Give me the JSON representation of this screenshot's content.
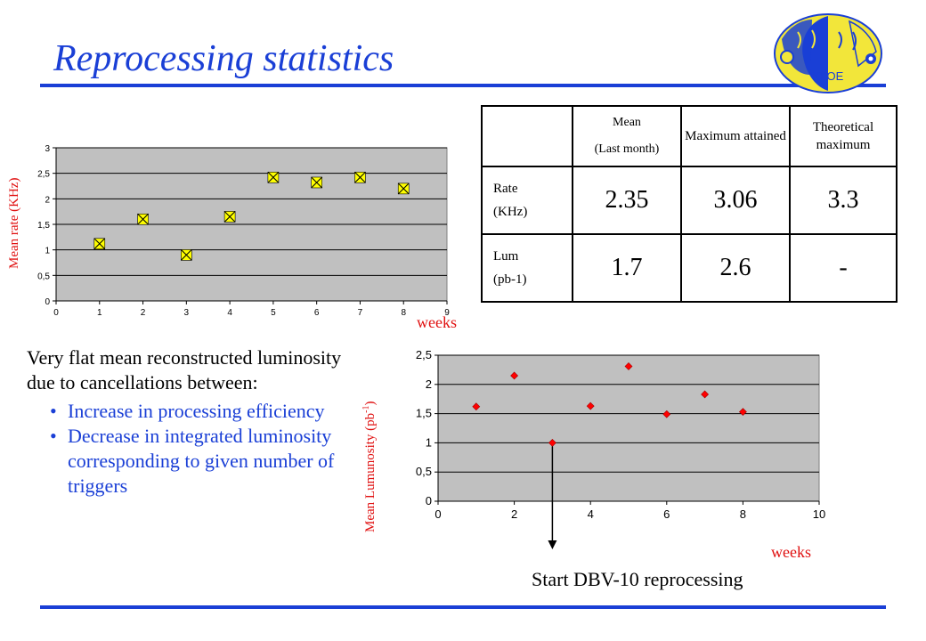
{
  "title": "Reprocessing statistics",
  "colors": {
    "title": "#1a3fd6",
    "axis_label": "#e01010",
    "plot_bg": "#c0c0c0",
    "marker1": "#ffff00",
    "marker2": "#ff0000"
  },
  "logo": {
    "icon": "kloe-logo-icon",
    "text": "KLOE"
  },
  "chart_data": [
    {
      "type": "scatter",
      "ylabel": "Mean rate (KHz)",
      "xlabel": "weeks",
      "xlim": [
        0,
        9
      ],
      "ylim": [
        0,
        3
      ],
      "xticks": [
        0,
        1,
        2,
        3,
        4,
        5,
        6,
        7,
        8,
        9
      ],
      "yticks": [
        0,
        0.5,
        1,
        1.5,
        2,
        2.5,
        3
      ],
      "yticklabels": [
        "0",
        "0,5",
        "1",
        "1,5",
        "2",
        "2,5",
        "3"
      ],
      "grid": true,
      "marker": "square-x",
      "x": [
        1,
        2,
        3,
        4,
        5,
        6,
        7,
        8
      ],
      "y": [
        1.12,
        1.6,
        0.9,
        1.65,
        2.42,
        2.32,
        2.42,
        2.2
      ]
    },
    {
      "type": "scatter",
      "ylabel": "Mean Lumunosity (pb",
      "ylabel_sup": "-1",
      "ylabel_end": ")",
      "xlabel": "weeks",
      "xlim": [
        0,
        10
      ],
      "ylim": [
        0,
        2.5
      ],
      "xticks": [
        0,
        2,
        4,
        6,
        8,
        10
      ],
      "yticks": [
        0,
        0.5,
        1,
        1.5,
        2,
        2.5
      ],
      "yticklabels": [
        "0",
        "0,5",
        "1",
        "1,5",
        "2",
        "2,5"
      ],
      "grid": true,
      "marker": "diamond",
      "x": [
        1,
        2,
        3,
        4,
        5,
        6,
        7,
        8
      ],
      "y": [
        1.62,
        2.15,
        1.0,
        1.63,
        2.31,
        1.49,
        1.83,
        1.53
      ]
    }
  ],
  "table": {
    "headers": [
      "",
      "Mean (Last month)",
      "Maximum attained",
      "Theoretical maximum"
    ],
    "header_mean_line1": "Mean",
    "header_mean_line2": "(Last month)",
    "header_max": "Maximum attained",
    "header_theo": "Theoretical maximum",
    "rows": [
      {
        "label1": "Rate",
        "label2": "(KHz)",
        "values": [
          "2.35",
          "3.06",
          "3.3"
        ]
      },
      {
        "label1": "Lum",
        "label2": "(pb-1)",
        "values": [
          "1.7",
          "2.6",
          "-"
        ]
      }
    ]
  },
  "description": {
    "intro": "Very flat mean reconstructed luminosity due to cancellations between:",
    "bullets": [
      "Increase in processing efficiency",
      "Decrease in integrated luminosity corresponding to given number of triggers"
    ]
  },
  "annotation": "Start DBV-10 reprocessing"
}
